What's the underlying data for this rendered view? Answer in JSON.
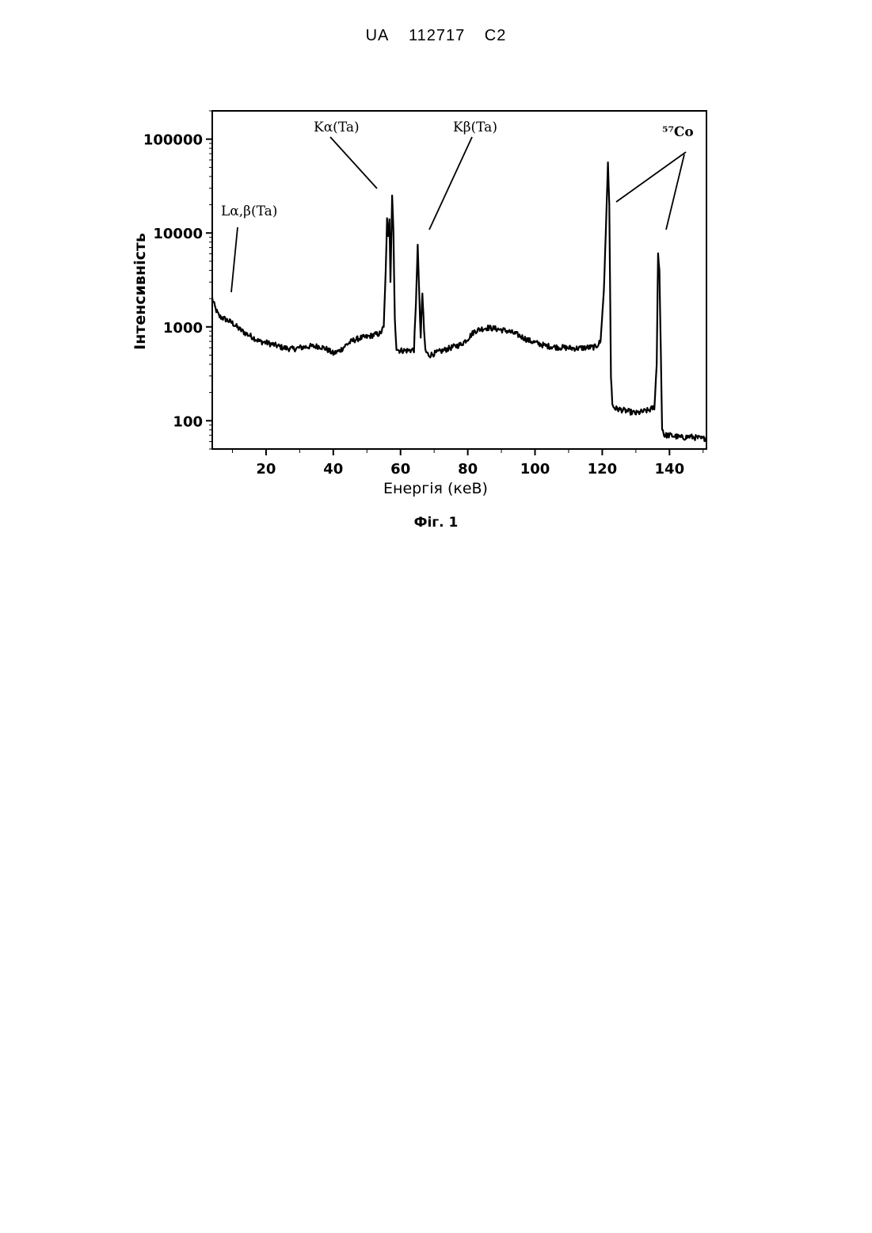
{
  "header": {
    "country": "UA",
    "number": "112717",
    "kind": "C2"
  },
  "figure_caption": "Фіг. 1",
  "chart_data": {
    "type": "line",
    "title": "",
    "xlabel": "Енергія (кеВ)",
    "ylabel": "Інтенсивність",
    "xscale": "linear",
    "yscale": "log",
    "xlim": [
      4,
      151
    ],
    "ylim": [
      50,
      200000
    ],
    "xticks": [
      20,
      40,
      60,
      80,
      100,
      120,
      140
    ],
    "yticks": [
      100,
      1000,
      10000,
      100000
    ],
    "xtick_labels": [
      "20",
      "40",
      "60",
      "80",
      "100",
      "120",
      "140"
    ],
    "ytick_labels": [
      "100",
      "1000",
      "10000",
      "100000"
    ],
    "grid": false,
    "legend": "none",
    "line_color": "#000000",
    "series": [
      {
        "x": [
          4,
          5,
          6,
          8,
          10,
          12,
          14,
          16,
          18,
          20,
          22,
          25,
          28,
          30,
          33,
          36,
          38,
          40,
          42,
          44,
          46,
          48,
          50,
          52,
          54,
          55,
          55.6,
          56,
          56.3,
          56.7,
          57.0,
          57.5,
          57.9,
          58.3,
          58.8,
          59.5,
          62,
          64,
          64.6,
          65.1,
          65.6,
          66.0,
          66.5,
          67.0,
          67.4,
          67.9,
          68.6,
          70,
          72,
          75,
          78,
          80,
          82,
          84,
          86,
          88,
          90,
          92,
          95,
          98,
          100,
          103,
          106,
          109,
          112,
          115,
          118,
          119.5,
          120.5,
          121.2,
          121.7,
          122.1,
          122.6,
          123.0,
          123.4,
          124,
          126,
          128,
          130,
          132,
          134,
          135.5,
          136.2,
          136.6,
          137.0,
          137.4,
          137.8,
          138.4,
          140,
          142,
          144,
          146,
          148,
          150,
          151
        ],
        "y": [
          2000,
          1550,
          1300,
          1200,
          1100,
          950,
          850,
          780,
          700,
          680,
          650,
          600,
          580,
          600,
          620,
          620,
          580,
          520,
          560,
          650,
          720,
          760,
          780,
          820,
          850,
          1000,
          4000,
          14000,
          9000,
          14000,
          3000,
          24000,
          10000,
          1200,
          600,
          560,
          560,
          570,
          1800,
          7500,
          2000,
          800,
          2300,
          900,
          560,
          520,
          500,
          520,
          550,
          600,
          650,
          750,
          900,
          950,
          980,
          960,
          930,
          900,
          820,
          720,
          680,
          630,
          610,
          600,
          590,
          600,
          610,
          700,
          2500,
          15000,
          55000,
          20000,
          300,
          150,
          140,
          135,
          130,
          125,
          120,
          125,
          130,
          140,
          400,
          6000,
          4000,
          600,
          85,
          70,
          70,
          68,
          66,
          68,
          66,
          64,
          66
        ]
      }
    ],
    "annotations": [
      {
        "text": "Lα,β(Ta)"
      },
      {
        "text": "Kα(Ta)"
      },
      {
        "text": "Kβ(Ta)"
      },
      {
        "text": "⁵⁷Co"
      }
    ]
  }
}
